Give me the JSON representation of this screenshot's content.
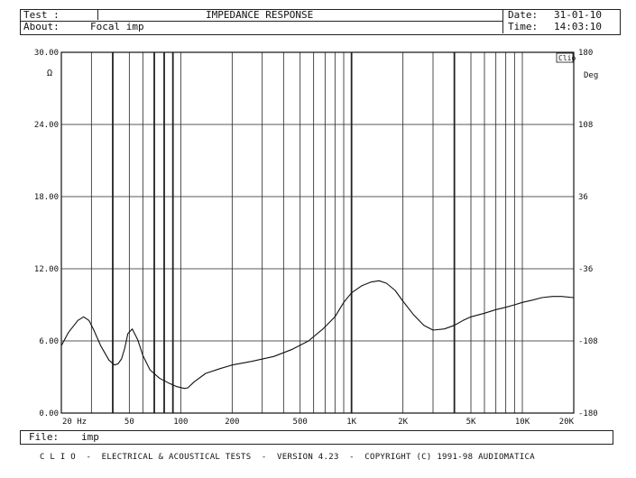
{
  "header": {
    "test_label": "Test :",
    "title": "IMPEDANCE RESPONSE",
    "about_label": "About:",
    "about_value": "Focal imp",
    "date_label": "Date:",
    "date_value": "31-01-10",
    "time_label": "Time:",
    "time_value": "14:03:10"
  },
  "footer": {
    "file_label": "File:",
    "file_value": "imp",
    "credits": "C L I O  -  ELECTRICAL & ACOUSTICAL TESTS  -  VERSION 4.23  -  COPYRIGHT (C) 1991-98 AUDIOMATICA"
  },
  "chart_data": {
    "type": "line",
    "title": "IMPEDANCE RESPONSE",
    "x_scale": "log",
    "xlim": [
      20,
      20000
    ],
    "ylim_left": [
      0,
      30
    ],
    "ylim_right": [
      -180,
      180
    ],
    "left_unit": "Ω",
    "right_unit": "Deg",
    "clio_mark": "Clio",
    "x_tick_labels": [
      {
        "x": 20,
        "label": "20  Hz"
      },
      {
        "x": 50,
        "label": "50"
      },
      {
        "x": 100,
        "label": "100"
      },
      {
        "x": 200,
        "label": "200"
      },
      {
        "x": 500,
        "label": "500"
      },
      {
        "x": 1000,
        "label": "1K"
      },
      {
        "x": 2000,
        "label": "2K"
      },
      {
        "x": 5000,
        "label": "5K"
      },
      {
        "x": 10000,
        "label": "10K"
      },
      {
        "x": 20000,
        "label": "20K"
      }
    ],
    "left_tick_labels": [
      {
        "y": 0,
        "label": "0.00"
      },
      {
        "y": 6,
        "label": "6.00"
      },
      {
        "y": 12,
        "label": "12.00"
      },
      {
        "y": 18,
        "label": "18.00"
      },
      {
        "y": 24,
        "label": "24.00"
      },
      {
        "y": 30,
        "label": "30.00"
      }
    ],
    "right_tick_labels": [
      {
        "y": -180,
        "label": "-180"
      },
      {
        "y": -108,
        "label": "-108"
      },
      {
        "y": -36,
        "label": "-36"
      },
      {
        "y": 36,
        "label": "36"
      },
      {
        "y": 108,
        "label": "108"
      },
      {
        "y": 180,
        "label": "180"
      }
    ],
    "grid": true,
    "bold_gridlines_hz": [
      40,
      70,
      80,
      90,
      1000,
      4000
    ],
    "series": [
      {
        "x": [
          20,
          22,
          25,
          27,
          29,
          31,
          34,
          38,
          41,
          43,
          45,
          47,
          49,
          52,
          56,
          60,
          66,
          75,
          85,
          95,
          105,
          110,
          120,
          140,
          170,
          200,
          260,
          350,
          450,
          560,
          680,
          800,
          900,
          1000,
          1150,
          1300,
          1450,
          1600,
          1800,
          2000,
          2300,
          2650,
          3000,
          3500,
          4000,
          4500,
          5000,
          6000,
          7000,
          8000,
          9000,
          10000,
          11500,
          13000,
          15000,
          17000,
          20000
        ],
        "y": [
          5.6,
          6.7,
          7.7,
          8.0,
          7.7,
          6.9,
          5.6,
          4.4,
          4.0,
          4.1,
          4.5,
          5.4,
          6.6,
          7.0,
          6.1,
          4.8,
          3.6,
          2.9,
          2.5,
          2.2,
          2.05,
          2.1,
          2.6,
          3.3,
          3.7,
          4.0,
          4.3,
          4.7,
          5.3,
          6.0,
          7.0,
          8.0,
          9.2,
          10.0,
          10.6,
          10.9,
          11.0,
          10.8,
          10.2,
          9.3,
          8.2,
          7.3,
          6.9,
          7.0,
          7.3,
          7.7,
          8.0,
          8.3,
          8.6,
          8.8,
          9.0,
          9.2,
          9.4,
          9.6,
          9.7,
          9.7,
          9.6
        ]
      }
    ]
  }
}
